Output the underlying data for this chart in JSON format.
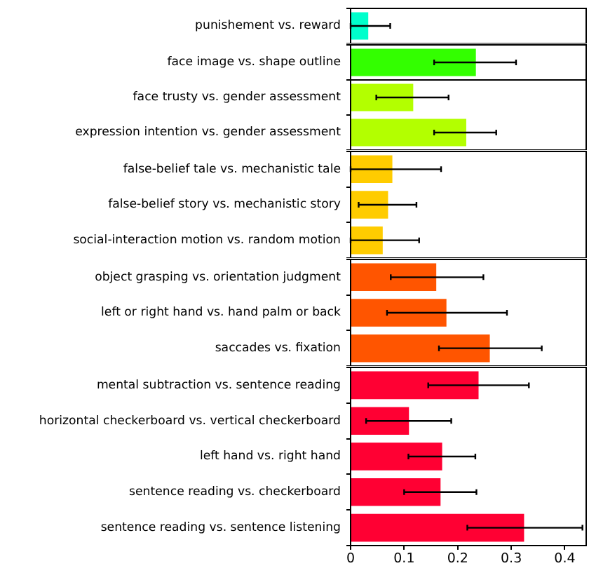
{
  "chart_data": [
    {
      "type": "bar",
      "orientation": "horizontal",
      "categories": [
        "punishement vs. reward"
      ],
      "values": [
        0.033
      ],
      "colors": [
        "#00ffcc"
      ],
      "errors": [
        [
          0.0,
          0.074
        ]
      ],
      "xlim": [
        0,
        0.44
      ],
      "xticks": [
        0,
        0.1,
        0.2,
        0.3,
        0.4
      ],
      "tick_labels": "y"
    },
    {
      "type": "bar",
      "orientation": "horizontal",
      "categories": [
        "face image vs. shape outline"
      ],
      "values": [
        0.234
      ],
      "colors": [
        "#33ff00"
      ],
      "errors": [
        [
          0.156,
          0.309
        ]
      ],
      "xlim": [
        0,
        0.44
      ],
      "xticks": [
        0,
        0.1,
        0.2,
        0.3,
        0.4
      ],
      "tick_labels": "y"
    },
    {
      "type": "bar",
      "orientation": "horizontal",
      "categories": [
        "face trusty vs. gender assessment",
        "expression intention vs. gender assessment"
      ],
      "values": [
        0.117,
        0.216
      ],
      "colors": [
        "#b3ff00",
        "#b3ff00"
      ],
      "errors": [
        [
          0.048,
          0.183
        ],
        [
          0.156,
          0.272
        ]
      ],
      "xlim": [
        0,
        0.44
      ],
      "xticks": [
        0,
        0.1,
        0.2,
        0.3,
        0.4
      ],
      "tick_labels": "y"
    },
    {
      "type": "bar",
      "orientation": "horizontal",
      "categories": [
        "false-belief tale vs. mechanistic tale",
        "false-belief story vs. mechanistic story",
        "social-interaction motion vs. random motion"
      ],
      "values": [
        0.078,
        0.07,
        0.06
      ],
      "colors": [
        "#ffcc00",
        "#ffcc00",
        "#ffcc00"
      ],
      "errors": [
        [
          0.0,
          0.169
        ],
        [
          0.015,
          0.123
        ],
        [
          0.0,
          0.128
        ]
      ],
      "xlim": [
        0,
        0.44
      ],
      "xticks": [
        0,
        0.1,
        0.2,
        0.3,
        0.4
      ],
      "tick_labels": "y"
    },
    {
      "type": "bar",
      "orientation": "horizontal",
      "categories": [
        "object grasping vs. orientation judgment",
        "left or right hand vs. hand palm or back",
        "saccades vs. fixation"
      ],
      "values": [
        0.16,
        0.179,
        0.26
      ],
      "colors": [
        "#ff5500",
        "#ff5500",
        "#ff5500"
      ],
      "errors": [
        [
          0.075,
          0.248
        ],
        [
          0.068,
          0.292
        ],
        [
          0.165,
          0.357
        ]
      ],
      "xlim": [
        0,
        0.44
      ],
      "xticks": [
        0,
        0.1,
        0.2,
        0.3,
        0.4
      ],
      "tick_labels": "y"
    },
    {
      "type": "bar",
      "orientation": "horizontal",
      "categories": [
        "mental subtraction vs. sentence reading",
        "horizontal checkerboard vs. vertical checkerboard",
        "left hand vs. right hand",
        "sentence reading vs. checkerboard",
        "sentence reading vs. sentence listening"
      ],
      "values": [
        0.239,
        0.109,
        0.171,
        0.168,
        0.324
      ],
      "colors": [
        "#ff0033",
        "#ff0033",
        "#ff0033",
        "#ff0033",
        "#ff0033"
      ],
      "errors": [
        [
          0.145,
          0.333
        ],
        [
          0.029,
          0.188
        ],
        [
          0.108,
          0.233
        ],
        [
          0.1,
          0.235
        ],
        [
          0.218,
          0.433
        ]
      ],
      "xlim": [
        0,
        0.44
      ],
      "xticks": [
        0,
        0.1,
        0.2,
        0.3,
        0.4
      ]
    }
  ]
}
